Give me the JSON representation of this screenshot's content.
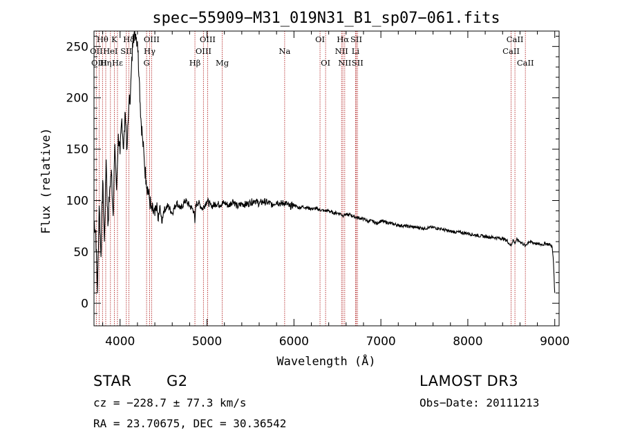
{
  "chart_data": {
    "type": "line",
    "title": "spec−55909−M31_019N31_B1_sp07−061.fits",
    "xlabel": "Wavelength (Å)",
    "ylabel": "Flux (relative)",
    "xlim": [
      3700,
      9050
    ],
    "ylim": [
      -22,
      265
    ],
    "xticks": [
      4000,
      5000,
      6000,
      7000,
      8000,
      9000
    ],
    "yticks": [
      0,
      50,
      100,
      150,
      200,
      250
    ],
    "grid": false,
    "series": [
      {
        "name": "spectrum",
        "x": [
          3700,
          3720,
          3740,
          3760,
          3780,
          3800,
          3820,
          3840,
          3860,
          3880,
          3900,
          3920,
          3940,
          3960,
          3980,
          4000,
          4020,
          4040,
          4060,
          4080,
          4100,
          4120,
          4150,
          4180,
          4200,
          4220,
          4240,
          4260,
          4280,
          4300,
          4320,
          4340,
          4360,
          4380,
          4400,
          4420,
          4440,
          4460,
          4480,
          4500,
          4550,
          4600,
          4650,
          4700,
          4750,
          4800,
          4850,
          4861,
          4870,
          4900,
          4950,
          5000,
          5050,
          5100,
          5150,
          5200,
          5250,
          5300,
          5350,
          5400,
          5450,
          5500,
          5550,
          5600,
          5650,
          5700,
          5750,
          5800,
          5850,
          5900,
          5950,
          6000,
          6050,
          6100,
          6150,
          6200,
          6250,
          6300,
          6350,
          6400,
          6450,
          6500,
          6540,
          6563,
          6580,
          6600,
          6650,
          6700,
          6750,
          6800,
          6850,
          6900,
          6950,
          7000,
          7100,
          7200,
          7300,
          7400,
          7500,
          7600,
          7700,
          7800,
          7900,
          8000,
          8100,
          8200,
          8300,
          8400,
          8450,
          8498,
          8520,
          8542,
          8560,
          8600,
          8662,
          8700,
          8750,
          8800,
          8850,
          8900,
          8950,
          8970,
          8985,
          9000
        ],
        "values": [
          80,
          70,
          10,
          95,
          45,
          120,
          60,
          140,
          75,
          110,
          130,
          85,
          155,
          110,
          165,
          145,
          180,
          150,
          185,
          150,
          190,
          205,
          262,
          262,
          255,
          220,
          180,
          160,
          135,
          120,
          110,
          100,
          92,
          88,
          85,
          92,
          80,
          95,
          78,
          90,
          95,
          88,
          98,
          92,
          100,
          95,
          90,
          78,
          96,
          98,
          92,
          100,
          94,
          97,
          96,
          98,
          95,
          100,
          94,
          97,
          96,
          98,
          100,
          97,
          99,
          98,
          96,
          99,
          97,
          98,
          94,
          96,
          93,
          94,
          93,
          92,
          92,
          91,
          90,
          90,
          88,
          88,
          87,
          85,
          87,
          86,
          86,
          84,
          83,
          82,
          80,
          80,
          78,
          80,
          78,
          76,
          75,
          74,
          73,
          74,
          72,
          70,
          69,
          68,
          66,
          65,
          64,
          63,
          61,
          56,
          62,
          58,
          62,
          60,
          56,
          60,
          59,
          58,
          57,
          58,
          57,
          55,
          40,
          10
        ]
      }
    ],
    "spectral_lines": [
      {
        "name": "Hθ",
        "wavelength": 3798,
        "row": 1
      },
      {
        "name": "OII",
        "wavelength": 3727,
        "row": 2
      },
      {
        "name": "OIII",
        "wavelength": 3760,
        "row": 3
      },
      {
        "name": "K",
        "wavelength": 3934,
        "row": 1
      },
      {
        "name": "HeI",
        "wavelength": 3889,
        "row": 2
      },
      {
        "name": "Hη",
        "wavelength": 3835,
        "row": 3
      },
      {
        "name": "Hε",
        "wavelength": 3970,
        "row": 3
      },
      {
        "name": "SII",
        "wavelength": 4072,
        "row": 2
      },
      {
        "name": "Hδ",
        "wavelength": 4102,
        "row": 1
      },
      {
        "name": "OIII",
        "wavelength": 4363,
        "row": 1
      },
      {
        "name": "Hγ",
        "wavelength": 4340,
        "row": 2
      },
      {
        "name": "G",
        "wavelength": 4305,
        "row": 3
      },
      {
        "name": "OIII",
        "wavelength": 5007,
        "row": 1
      },
      {
        "name": "OIII",
        "wavelength": 4959,
        "row": 2
      },
      {
        "name": "Hβ",
        "wavelength": 4861,
        "row": 3
      },
      {
        "name": "Mg",
        "wavelength": 5175,
        "row": 3
      },
      {
        "name": "Na",
        "wavelength": 5893,
        "row": 2
      },
      {
        "name": "OI",
        "wavelength": 6300,
        "row": 1
      },
      {
        "name": "OI",
        "wavelength": 6364,
        "row": 3
      },
      {
        "name": "Hα",
        "wavelength": 6563,
        "row": 1
      },
      {
        "name": "NII",
        "wavelength": 6548,
        "row": 2
      },
      {
        "name": "NII",
        "wavelength": 6584,
        "row": 3
      },
      {
        "name": "SII",
        "wavelength": 6717,
        "row": 1
      },
      {
        "name": "Li",
        "wavelength": 6708,
        "row": 2
      },
      {
        "name": "SII",
        "wavelength": 6731,
        "row": 3
      },
      {
        "name": "CaII",
        "wavelength": 8542,
        "row": 1
      },
      {
        "name": "CaII",
        "wavelength": 8498,
        "row": 2
      },
      {
        "name": "CaII",
        "wavelength": 8662,
        "row": 3
      }
    ]
  },
  "footer": {
    "class_label": "STAR",
    "subclass": "G2",
    "survey": "LAMOST DR3",
    "cz": "cz = −228.7 ± 77.3 km/s",
    "obs_date": "Obs−Date: 20111213",
    "coords": "RA =  23.70675, DEC =  30.36542"
  },
  "colors": {
    "spectrum": "#000000",
    "line_marker": "#b22222",
    "axis": "#000000"
  }
}
